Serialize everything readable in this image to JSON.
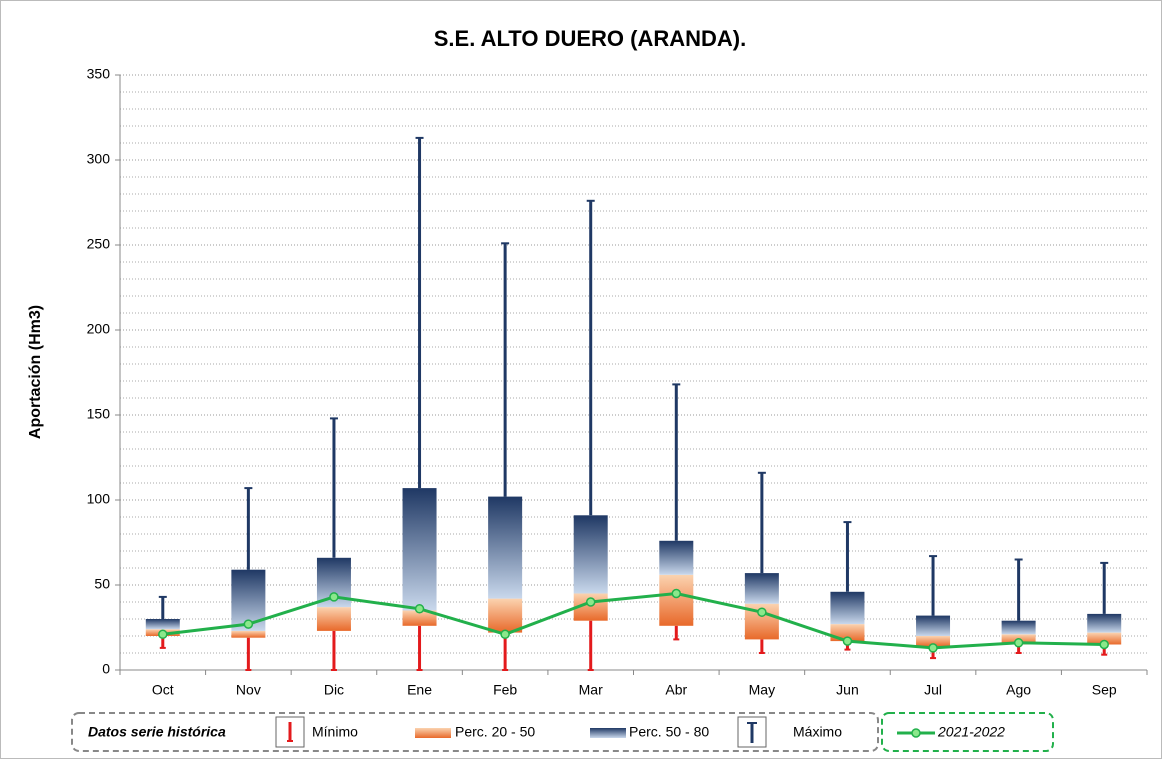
{
  "chart_data": {
    "type": "box",
    "title": "S.E. ALTO DUERO (ARANDA).",
    "y_label": "Aportación (Hm3)",
    "categories": [
      "Oct",
      "Nov",
      "Dic",
      "Ene",
      "Feb",
      "Mar",
      "Abr",
      "May",
      "Jun",
      "Jul",
      "Ago",
      "Sep"
    ],
    "stats": {
      "min": [
        13,
        0,
        0,
        0,
        0,
        0,
        18,
        10,
        12,
        7,
        10,
        9
      ],
      "p20": [
        20,
        19,
        23,
        26,
        22,
        29,
        26,
        18,
        17,
        14,
        15,
        15
      ],
      "p50": [
        24,
        23,
        37,
        35,
        42,
        45,
        56,
        39,
        27,
        20,
        21,
        22
      ],
      "p80": [
        30,
        59,
        66,
        107,
        102,
        91,
        76,
        57,
        46,
        32,
        29,
        33
      ],
      "max": [
        43,
        107,
        148,
        313,
        251,
        276,
        168,
        116,
        87,
        67,
        65,
        63
      ]
    },
    "legend": {
      "title": "Datos serie histórica",
      "items": [
        "Mínimo",
        "Perc. 20 - 50",
        "Perc. 50 - 80",
        "Máximo"
      ]
    },
    "colors": {
      "min": "#e31a1c",
      "max": "#1f3864"
    },
    "series": [
      {
        "name": "2021-2022",
        "color": "#22b04b",
        "values": [
          21,
          27,
          43,
          36,
          21,
          40,
          45,
          34,
          17,
          13,
          16,
          15
        ]
      }
    ],
    "ylim": [
      0,
      350
    ],
    "yticks": [
      0,
      50,
      100,
      150,
      200,
      250,
      300,
      350
    ],
    "yminor": 10,
    "grid": true
  }
}
